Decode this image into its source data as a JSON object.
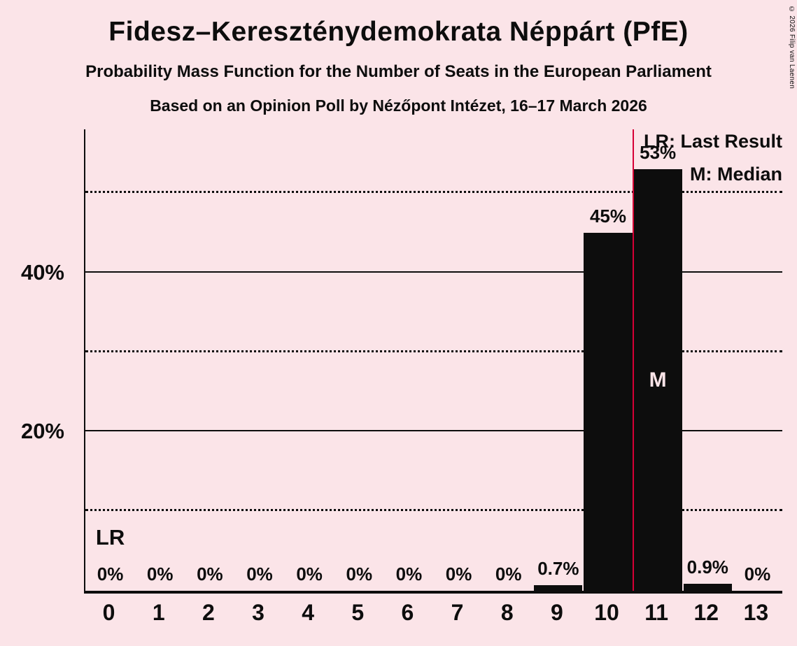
{
  "copyright": "© 2026 Filip van Laenen",
  "colors": {
    "background": "#fbe4e8",
    "text": "#0d0d0d",
    "bar": "#0d0d0d",
    "last_result_line": "#d60036",
    "median_text": "#fbe4e8"
  },
  "chart_data": {
    "type": "bar",
    "title": "Fidesz–Kereszténydemokrata Néppárt (PfE)",
    "subtitle": "Probability Mass Function for the Number of Seats in the European Parliament",
    "poll_line": "Based on an Opinion Poll by Nézőpont Intézet, 16–17 March 2026",
    "xlabel": "",
    "ylabel": "",
    "categories": [
      "0",
      "1",
      "2",
      "3",
      "4",
      "5",
      "6",
      "7",
      "8",
      "9",
      "10",
      "11",
      "12",
      "13"
    ],
    "values": [
      0,
      0,
      0,
      0,
      0,
      0,
      0,
      0,
      0,
      0.7,
      45,
      53,
      0.9,
      0
    ],
    "bar_labels": [
      "0%",
      "0%",
      "0%",
      "0%",
      "0%",
      "0%",
      "0%",
      "0%",
      "0%",
      "0.7%",
      "45%",
      "53%",
      "0.9%",
      "0%"
    ],
    "ylim": [
      0,
      58
    ],
    "grid": true,
    "yticks": [
      {
        "value": 20,
        "label": "20%"
      },
      {
        "value": 40,
        "label": "40%"
      }
    ],
    "gridlines_solid": [
      20,
      40
    ],
    "gridlines_dotted": [
      10,
      30,
      50
    ],
    "legend_position": "top-right",
    "legend": {
      "last_result": "LR: Last Result",
      "median": "M: Median"
    },
    "last_result_boundary": 11,
    "last_result_annotation": "LR",
    "last_result_annotation_index": 0,
    "median_label": "M",
    "median_category_index": 11
  }
}
